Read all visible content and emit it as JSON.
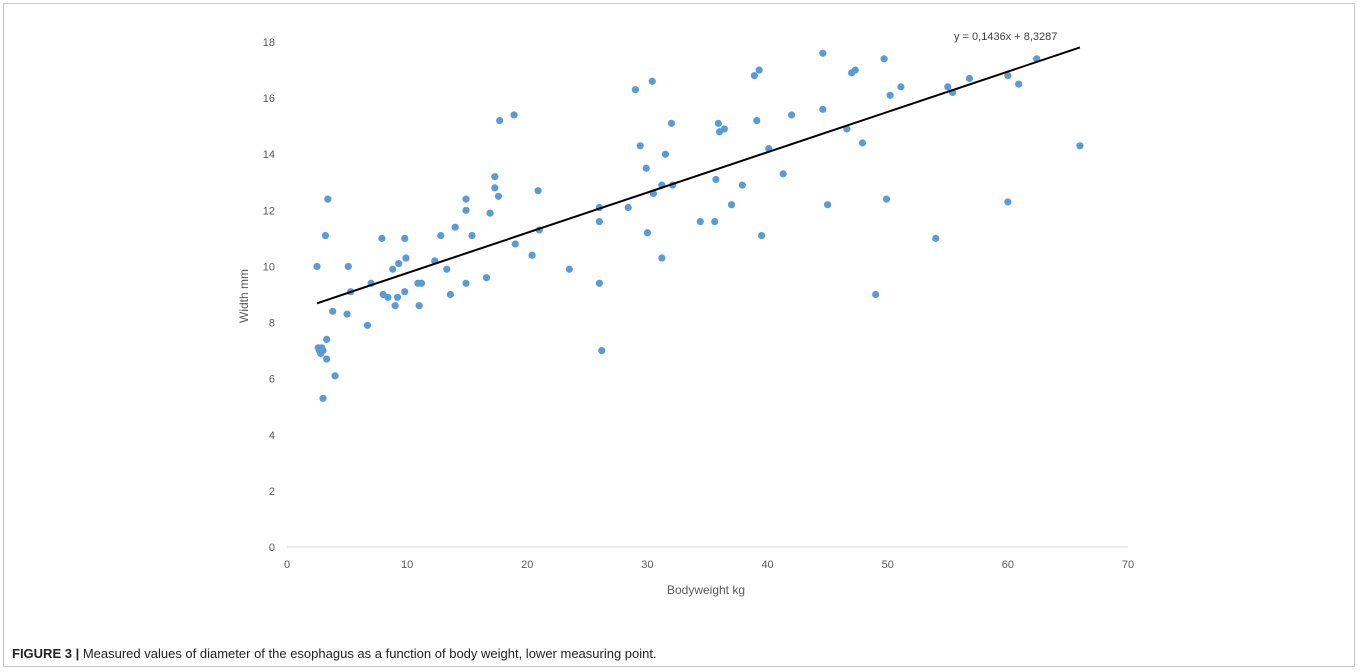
{
  "caption": {
    "label": "FIGURE 3 |",
    "text": " Measured values of diameter of the esophagus as a function of body weight, lower measuring point."
  },
  "chart_data": {
    "type": "scatter",
    "xlabel": "Bodyweight kg",
    "ylabel": "Width mm",
    "xlim": [
      0,
      70
    ],
    "ylim": [
      0,
      18
    ],
    "x_ticks": [
      0,
      10,
      20,
      30,
      40,
      50,
      60,
      70
    ],
    "y_ticks": [
      0,
      2,
      4,
      6,
      8,
      10,
      12,
      14,
      16,
      18
    ],
    "grid": false,
    "point_color": "#5b9bd5",
    "trendline": {
      "equation": "y = 0,1436x + 8,3287",
      "slope": 0.1436,
      "intercept": 8.3287,
      "x_range": [
        2.5,
        66
      ],
      "color": "#000000"
    },
    "series": [
      {
        "points": [
          [
            2.5,
            10.0
          ],
          [
            2.6,
            7.1
          ],
          [
            2.7,
            7.0
          ],
          [
            2.8,
            6.9
          ],
          [
            2.9,
            7.1
          ],
          [
            3.0,
            7.0
          ],
          [
            3.0,
            5.3
          ],
          [
            3.2,
            11.1
          ],
          [
            3.3,
            6.7
          ],
          [
            3.3,
            7.4
          ],
          [
            3.4,
            12.4
          ],
          [
            3.8,
            8.4
          ],
          [
            4.0,
            6.1
          ],
          [
            5.0,
            8.3
          ],
          [
            5.1,
            10.0
          ],
          [
            5.3,
            9.1
          ],
          [
            6.7,
            7.9
          ],
          [
            7.0,
            9.4
          ],
          [
            7.9,
            11.0
          ],
          [
            8.0,
            9.0
          ],
          [
            8.4,
            8.9
          ],
          [
            8.8,
            9.9
          ],
          [
            9.0,
            8.6
          ],
          [
            9.2,
            8.9
          ],
          [
            9.3,
            10.1
          ],
          [
            9.8,
            11.0
          ],
          [
            9.8,
            9.1
          ],
          [
            9.9,
            10.3
          ],
          [
            10.9,
            9.4
          ],
          [
            11.0,
            8.6
          ],
          [
            11.2,
            9.4
          ],
          [
            12.3,
            10.2
          ],
          [
            12.8,
            11.1
          ],
          [
            13.3,
            9.9
          ],
          [
            13.6,
            9.0
          ],
          [
            14.0,
            11.4
          ],
          [
            14.9,
            12.4
          ],
          [
            14.9,
            12.0
          ],
          [
            14.9,
            9.4
          ],
          [
            15.4,
            11.1
          ],
          [
            16.6,
            9.6
          ],
          [
            16.9,
            11.9
          ],
          [
            17.3,
            13.2
          ],
          [
            17.3,
            12.8
          ],
          [
            17.6,
            12.5
          ],
          [
            17.7,
            15.2
          ],
          [
            18.9,
            15.4
          ],
          [
            19.0,
            10.8
          ],
          [
            20.4,
            10.4
          ],
          [
            20.9,
            12.7
          ],
          [
            21.0,
            11.3
          ],
          [
            23.5,
            9.9
          ],
          [
            26.0,
            12.1
          ],
          [
            26.0,
            11.6
          ],
          [
            26.0,
            9.4
          ],
          [
            26.2,
            7.0
          ],
          [
            28.4,
            12.1
          ],
          [
            29.0,
            16.3
          ],
          [
            29.4,
            14.3
          ],
          [
            29.9,
            13.5
          ],
          [
            30.0,
            11.2
          ],
          [
            30.4,
            16.6
          ],
          [
            30.5,
            12.6
          ],
          [
            31.2,
            12.9
          ],
          [
            31.2,
            10.3
          ],
          [
            31.5,
            14.0
          ],
          [
            32.0,
            15.1
          ],
          [
            32.1,
            12.9
          ],
          [
            34.4,
            11.6
          ],
          [
            35.6,
            11.6
          ],
          [
            35.7,
            13.1
          ],
          [
            35.9,
            15.1
          ],
          [
            36.0,
            14.8
          ],
          [
            36.4,
            14.9
          ],
          [
            37.0,
            12.2
          ],
          [
            37.9,
            12.9
          ],
          [
            38.9,
            16.8
          ],
          [
            39.1,
            15.2
          ],
          [
            39.3,
            17.0
          ],
          [
            39.5,
            11.1
          ],
          [
            40.1,
            14.2
          ],
          [
            41.3,
            13.3
          ],
          [
            42.0,
            15.4
          ],
          [
            44.6,
            17.6
          ],
          [
            44.6,
            15.6
          ],
          [
            45.0,
            12.2
          ],
          [
            46.6,
            14.9
          ],
          [
            47.0,
            16.9
          ],
          [
            47.3,
            17.0
          ],
          [
            47.9,
            14.4
          ],
          [
            49.0,
            9.0
          ],
          [
            49.7,
            17.4
          ],
          [
            49.9,
            12.4
          ],
          [
            50.2,
            16.1
          ],
          [
            51.1,
            16.4
          ],
          [
            54.0,
            11.0
          ],
          [
            55.0,
            16.4
          ],
          [
            55.4,
            16.2
          ],
          [
            56.8,
            16.7
          ],
          [
            60.0,
            16.8
          ],
          [
            60.0,
            12.3
          ],
          [
            60.9,
            16.5
          ],
          [
            62.4,
            17.4
          ],
          [
            66.0,
            14.3
          ]
        ]
      }
    ]
  }
}
